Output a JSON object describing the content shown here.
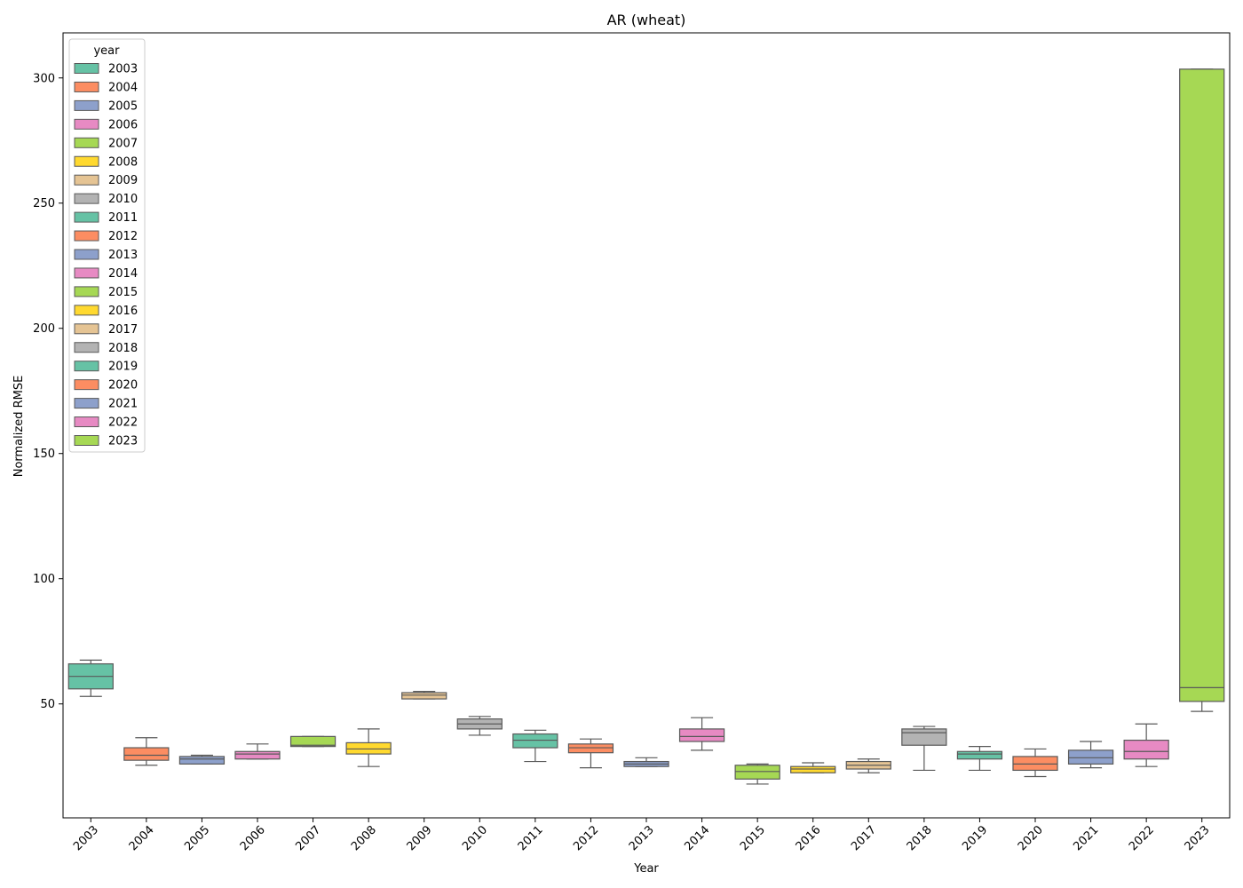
{
  "chart_data": {
    "type": "box",
    "title": "AR (wheat)",
    "xlabel": "Year",
    "ylabel": "Normalized RMSE",
    "ylim": [
      4.5,
      318
    ],
    "yticks": [
      50,
      100,
      150,
      200,
      250,
      300
    ],
    "grid": false,
    "legend": {
      "title": "year",
      "placement": "top-left"
    },
    "palette": [
      "#66c2a5",
      "#fc8d62",
      "#8da0cb",
      "#e78ac3",
      "#a6d854",
      "#ffd92f",
      "#e5c494",
      "#b3b3b3"
    ],
    "categories": [
      "2003",
      "2004",
      "2005",
      "2006",
      "2007",
      "2008",
      "2009",
      "2010",
      "2011",
      "2012",
      "2013",
      "2014",
      "2015",
      "2016",
      "2017",
      "2018",
      "2019",
      "2020",
      "2021",
      "2022",
      "2023"
    ],
    "series": [
      {
        "name": "2003",
        "whislo": 53,
        "q1": 56,
        "median": 61,
        "q3": 66,
        "whishi": 67.5
      },
      {
        "name": "2004",
        "whislo": 25.5,
        "q1": 27.5,
        "median": 29.5,
        "q3": 32.5,
        "whishi": 36.5
      },
      {
        "name": "2005",
        "whislo": 26,
        "q1": 26,
        "median": 28,
        "q3": 29,
        "whishi": 29.5
      },
      {
        "name": "2006",
        "whislo": 28,
        "q1": 28,
        "median": 30,
        "q3": 31,
        "whishi": 34
      },
      {
        "name": "2007",
        "whislo": 33,
        "q1": 33,
        "median": 33.5,
        "q3": 37,
        "whishi": 37
      },
      {
        "name": "2008",
        "whislo": 25,
        "q1": 30,
        "median": 32,
        "q3": 34.5,
        "whishi": 40
      },
      {
        "name": "2009",
        "whislo": 52,
        "q1": 52,
        "median": 53.5,
        "q3": 54.5,
        "whishi": 55
      },
      {
        "name": "2010",
        "whislo": 37.5,
        "q1": 40,
        "median": 42,
        "q3": 44,
        "whishi": 45
      },
      {
        "name": "2011",
        "whislo": 27,
        "q1": 32.5,
        "median": 35.5,
        "q3": 38,
        "whishi": 39.5
      },
      {
        "name": "2012",
        "whislo": 24.5,
        "q1": 30.5,
        "median": 32.5,
        "q3": 34,
        "whishi": 36
      },
      {
        "name": "2013",
        "whislo": 25,
        "q1": 25,
        "median": 26,
        "q3": 27,
        "whishi": 28.5
      },
      {
        "name": "2014",
        "whislo": 31.5,
        "q1": 35,
        "median": 37,
        "q3": 40,
        "whishi": 44.5
      },
      {
        "name": "2015",
        "whislo": 18,
        "q1": 20,
        "median": 23,
        "q3": 25.5,
        "whishi": 26
      },
      {
        "name": "2016",
        "whislo": 22.5,
        "q1": 22.5,
        "median": 24,
        "q3": 25,
        "whishi": 26.5
      },
      {
        "name": "2017",
        "whislo": 22.5,
        "q1": 24,
        "median": 25.5,
        "q3": 27,
        "whishi": 28
      },
      {
        "name": "2018",
        "whislo": 23.5,
        "q1": 33.5,
        "median": 38.5,
        "q3": 40,
        "whishi": 41
      },
      {
        "name": "2019",
        "whislo": 23.5,
        "q1": 28,
        "median": 30,
        "q3": 31,
        "whishi": 33
      },
      {
        "name": "2020",
        "whislo": 21,
        "q1": 23.5,
        "median": 26,
        "q3": 29,
        "whishi": 32
      },
      {
        "name": "2021",
        "whislo": 24.5,
        "q1": 26,
        "median": 28.5,
        "q3": 31.5,
        "whishi": 35
      },
      {
        "name": "2022",
        "whislo": 25,
        "q1": 28,
        "median": 31,
        "q3": 35.5,
        "whishi": 42
      },
      {
        "name": "2023",
        "whislo": 47,
        "q1": 51,
        "median": 56.5,
        "q3": 303.5,
        "whishi": 303.5
      }
    ]
  }
}
